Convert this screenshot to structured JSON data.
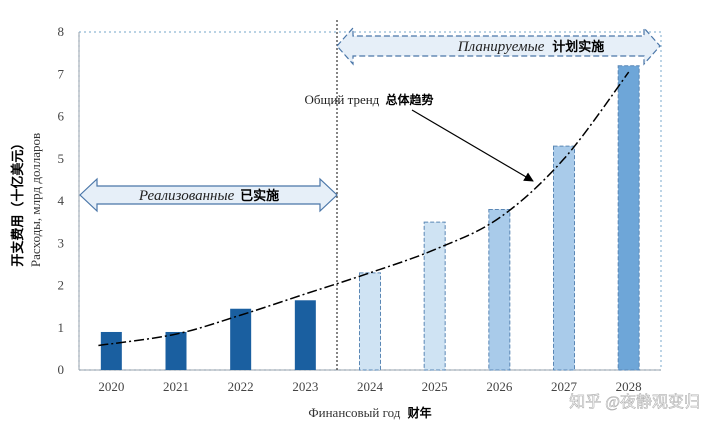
{
  "chart_data": {
    "type": "bar",
    "categories": [
      "2020",
      "2021",
      "2022",
      "2023",
      "2024",
      "2025",
      "2026",
      "2027",
      "2028"
    ],
    "values": [
      0.9,
      0.9,
      1.45,
      1.65,
      2.3,
      3.5,
      3.8,
      5.3,
      7.2
    ],
    "bar_status": [
      "actual",
      "actual",
      "actual",
      "actual",
      "planned",
      "planned",
      "planned",
      "planned",
      "planned"
    ],
    "ylim": [
      0,
      8
    ],
    "yticks": [
      "0",
      "1",
      "2",
      "3",
      "4",
      "5",
      "6",
      "7",
      "8"
    ],
    "ylabel_cn": "开支费用（十亿美元）",
    "ylabel_ru": "Расходы, млрд долларов",
    "xlabel_ru": "Финансовый год",
    "xlabel_cn": "财年",
    "trend_label_ru": "Общий тренд",
    "trend_label_cn": "总体趋势",
    "realized_label_ru": "Реализованные",
    "realized_label_cn": "已实施",
    "planned_label_ru": "Планируемые",
    "planned_label_cn": "计划实施",
    "trend_points": [
      [
        2019.8,
        0.58
      ],
      [
        2021,
        0.85
      ],
      [
        2022,
        1.3
      ],
      [
        2023,
        1.8
      ],
      [
        2024,
        2.3
      ],
      [
        2025,
        2.85
      ],
      [
        2026,
        3.6
      ],
      [
        2027,
        5.0
      ],
      [
        2028,
        7.05
      ]
    ],
    "grid": false,
    "colors": {
      "actual_bar": "#1a5fa0",
      "planned_bar_light": "#cfe3f3",
      "planned_bar_mid": "#a9cbea",
      "planned_bar_dark": "#6ea6d8",
      "planned_bar_edge": "#5a87b5",
      "arrow_fill": "#e6eff8",
      "arrow_edge": "#4a76a8",
      "axis": "#9aa3ad",
      "frame_dotted": "#8fb7d4",
      "divider": "#333333"
    }
  },
  "watermark": "知乎 @夜静观变归"
}
